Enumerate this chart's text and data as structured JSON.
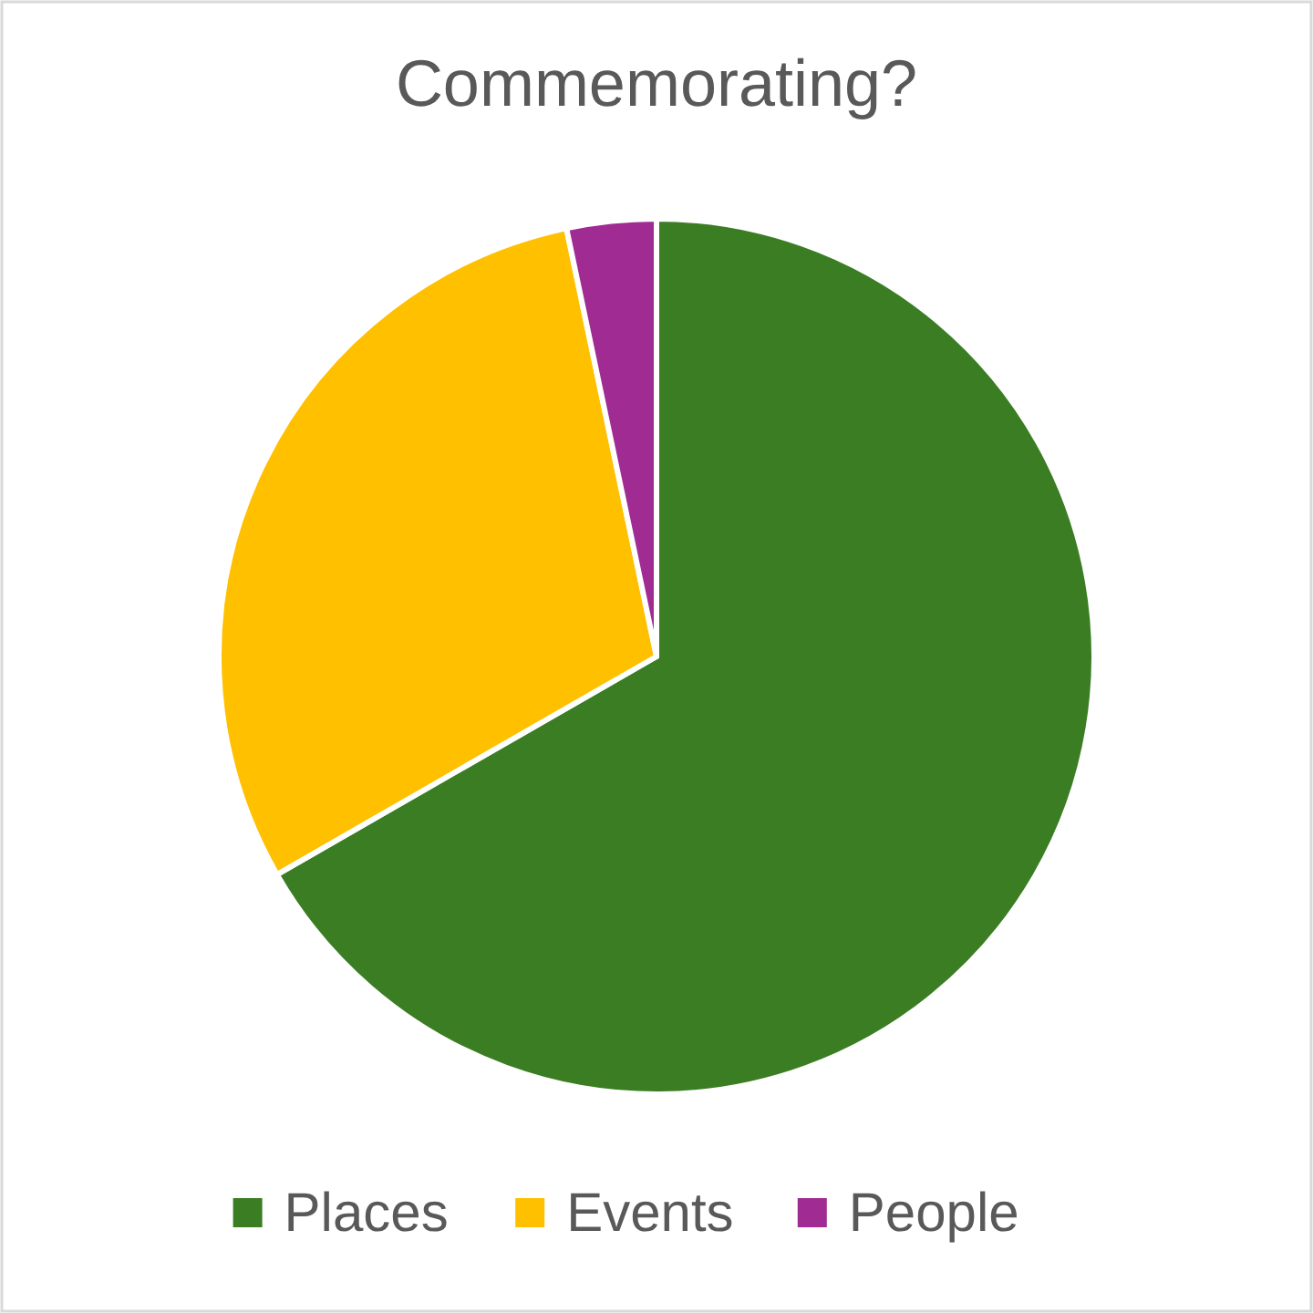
{
  "chart_data": {
    "type": "pie",
    "title": "Commemorating?",
    "categories": [
      "Places",
      "Events",
      "People"
    ],
    "values": [
      66.7,
      30,
      3.3
    ],
    "colors": [
      "#3a7d22",
      "#ffc000",
      "#a02b93"
    ],
    "legend": "bottom"
  }
}
